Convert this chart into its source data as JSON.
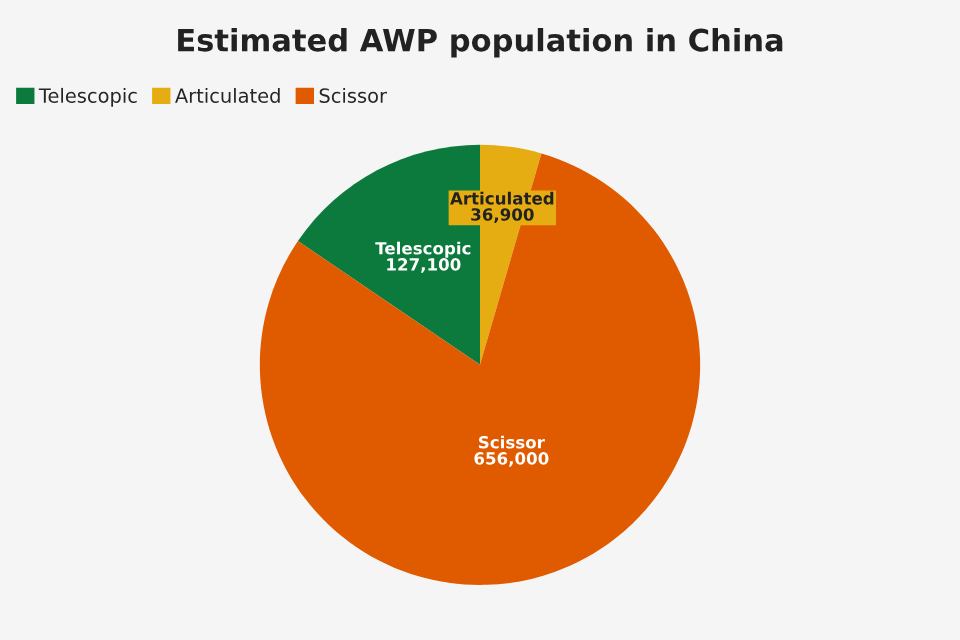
{
  "chart_data": {
    "type": "pie",
    "title": "Estimated AWP population in China",
    "categories": [
      "Telescopic",
      "Articulated",
      "Scissor"
    ],
    "values": [
      127100,
      36900,
      656000
    ],
    "value_labels": [
      "127,100",
      "36,900",
      "656,000"
    ],
    "colors": [
      "#0b7a3c",
      "#e6ad12",
      "#e05a00"
    ],
    "legend": "top left"
  }
}
